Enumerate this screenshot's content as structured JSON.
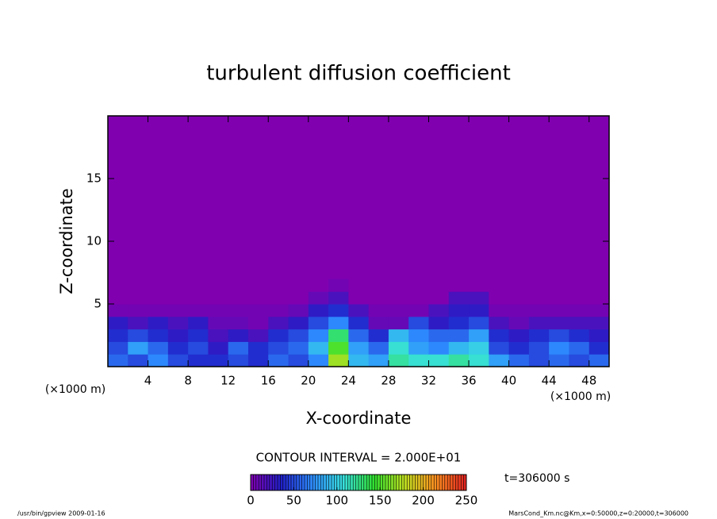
{
  "chart_data": {
    "type": "heatmap",
    "title": "turbulent diffusion coefficient",
    "x_label": "X-coordinate",
    "y_label": "Z-coordinate",
    "x_unit": "(×1000 m)",
    "y_unit": "(×1000 m)",
    "xlim": [
      0,
      50
    ],
    "ylim": [
      0,
      20
    ],
    "xticks": [
      4,
      8,
      12,
      16,
      20,
      24,
      28,
      32,
      36,
      40,
      44,
      48
    ],
    "yticks": [
      5,
      10,
      15
    ],
    "x": [
      1,
      3,
      5,
      7,
      9,
      11,
      13,
      15,
      17,
      19,
      21,
      23,
      25,
      27,
      29,
      31,
      33,
      35,
      37,
      39,
      41,
      43,
      45,
      47,
      49
    ],
    "z": [
      0.5,
      1.5,
      2.5,
      3.5,
      4.5,
      5.5,
      6.5
    ],
    "values": [
      [
        60,
        50,
        70,
        50,
        40,
        40,
        50,
        40,
        60,
        50,
        70,
        170,
        90,
        80,
        120,
        110,
        110,
        120,
        110,
        80,
        60,
        50,
        60,
        50,
        60
      ],
      [
        50,
        80,
        60,
        40,
        50,
        30,
        60,
        40,
        50,
        60,
        90,
        150,
        80,
        60,
        110,
        80,
        70,
        90,
        100,
        50,
        40,
        50,
        70,
        60,
        40
      ],
      [
        40,
        50,
        40,
        30,
        40,
        20,
        30,
        20,
        40,
        50,
        70,
        130,
        60,
        40,
        90,
        70,
        60,
        60,
        80,
        40,
        30,
        40,
        50,
        40,
        30
      ],
      [
        30,
        20,
        30,
        20,
        30,
        10,
        10,
        5,
        20,
        30,
        50,
        70,
        40,
        10,
        10,
        50,
        30,
        40,
        50,
        20,
        10,
        20,
        20,
        20,
        20
      ],
      [
        5,
        5,
        5,
        5,
        5,
        5,
        5,
        5,
        5,
        10,
        30,
        40,
        20,
        5,
        5,
        5,
        20,
        30,
        30,
        5,
        5,
        5,
        5,
        5,
        5
      ],
      [
        0,
        0,
        0,
        0,
        0,
        0,
        0,
        0,
        0,
        0,
        10,
        20,
        0,
        0,
        0,
        0,
        0,
        20,
        20,
        0,
        0,
        0,
        0,
        0,
        0
      ],
      [
        0,
        0,
        0,
        0,
        0,
        0,
        0,
        0,
        0,
        0,
        0,
        5,
        0,
        0,
        0,
        0,
        0,
        0,
        0,
        0,
        0,
        0,
        0,
        0,
        0
      ]
    ],
    "colormap": [
      "#8000b0",
      "#2020c8",
      "#2e8cff",
      "#38e0e0",
      "#30e030",
      "#c0e020",
      "#ff9020",
      "#e02020"
    ],
    "clim": [
      0,
      250
    ],
    "colorbar_ticks": [
      0,
      50,
      100,
      150,
      200,
      250
    ],
    "contour_interval": "CONTOUR INTERVAL = 2.000E+01",
    "time_label": "t=306000 s",
    "footer_left": "/usr/bin/gpview  2009-01-16",
    "footer_right": "MarsCond_Km.nc@Km,x=0:50000,z=0:20000,t=306000"
  }
}
